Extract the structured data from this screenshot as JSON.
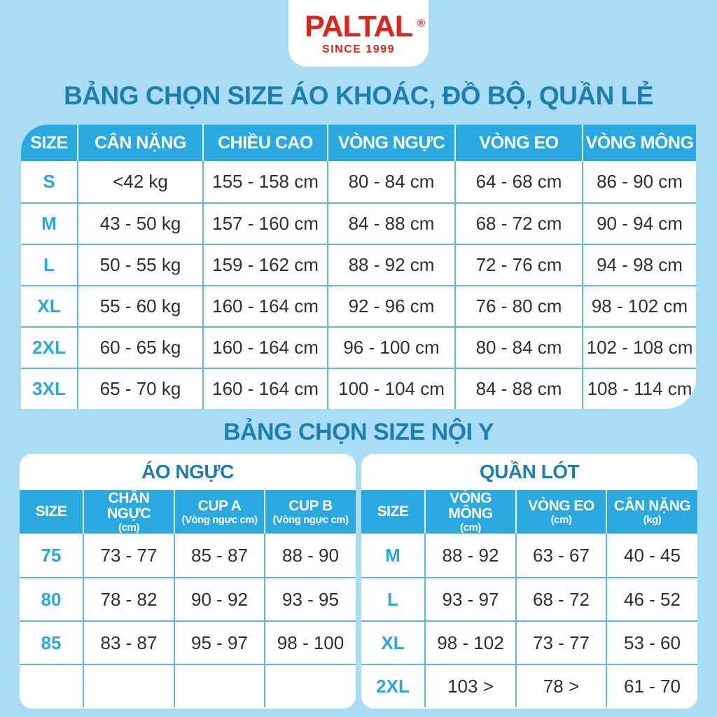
{
  "theme": {
    "background_color": "#a9ddf6",
    "header_blue": "#29a9e0",
    "title_teal": "#1d7fae",
    "grid_line_cyan": "#5bb9de",
    "logo_red": "#e2231a",
    "body_text": "#2f2f2f"
  },
  "logo": {
    "brand": "PALTAL",
    "registered_mark": "®",
    "tagline": "SINCE 1999"
  },
  "section_outerwear": {
    "title": "BẢNG CHỌN SIZE ÁO KHOÁC, ĐỒ BỘ, QUẦN LẺ",
    "table": {
      "headers": [
        "SIZE",
        "CÂN NẶNG",
        "CHIỀU CAO",
        "VÒNG NGỰC",
        "VÒNG EO",
        "VÒNG MÔNG"
      ],
      "rows": [
        [
          "S",
          "<42 kg",
          "155 - 158 cm",
          "80 - 84 cm",
          "64 - 68 cm",
          "86 - 90 cm"
        ],
        [
          "M",
          "43 - 50 kg",
          "157 - 160 cm",
          "84 - 88 cm",
          "68 - 72 cm",
          "90 - 94 cm"
        ],
        [
          "L",
          "50 - 55 kg",
          "159 - 162 cm",
          "88 - 92 cm",
          "72 - 76 cm",
          "94 - 98 cm"
        ],
        [
          "XL",
          "55 - 60 kg",
          "160 - 164 cm",
          "92 - 96 cm",
          "76 - 80 cm",
          "98 - 102 cm"
        ],
        [
          "2XL",
          "60 - 65 kg",
          "160 - 164 cm",
          "96 - 100 cm",
          "80 - 84 cm",
          "102 - 108 cm"
        ],
        [
          "3XL",
          "65 - 70 kg",
          "160 - 164 cm",
          "100 - 104 cm",
          "84 - 88 cm",
          "108 - 114 cm"
        ]
      ]
    }
  },
  "section_underwear": {
    "title": "BẢNG CHỌN SIZE NỘI Y",
    "bra_table": {
      "title": "ÁO NGỰC",
      "headers": [
        {
          "label": "SIZE",
          "unit": ""
        },
        {
          "label": "CHÂN NGỰC",
          "unit": "(cm)"
        },
        {
          "label": "CUP A",
          "unit": "(Vòng ngực cm)"
        },
        {
          "label": "CUP B",
          "unit": "(Vòng ngực cm)"
        }
      ],
      "rows": [
        [
          "75",
          "73 - 77",
          "85 - 87",
          "88 - 90"
        ],
        [
          "80",
          "78 - 82",
          "90 - 92",
          "93 - 95"
        ],
        [
          "85",
          "83 - 87",
          "95 - 97",
          "98 - 100"
        ],
        [
          "",
          "",
          "",
          ""
        ]
      ]
    },
    "panty_table": {
      "title": "QUẦN LÓT",
      "headers": [
        {
          "label": "SIZE",
          "unit": ""
        },
        {
          "label": "VÒNG MÔNG",
          "unit": "(cm)"
        },
        {
          "label": "VÒNG EO",
          "unit": "(cm)"
        },
        {
          "label": "CÂN NẶNG",
          "unit": "(kg)"
        }
      ],
      "rows": [
        [
          "M",
          "88 - 92",
          "63 - 67",
          "40 - 45"
        ],
        [
          "L",
          "93 - 97",
          "68 - 72",
          "46 - 52"
        ],
        [
          "XL",
          "98 - 102",
          "73 - 77",
          "53 - 60"
        ],
        [
          "2XL",
          "103 >",
          "78 >",
          "61 - 70"
        ]
      ]
    }
  }
}
